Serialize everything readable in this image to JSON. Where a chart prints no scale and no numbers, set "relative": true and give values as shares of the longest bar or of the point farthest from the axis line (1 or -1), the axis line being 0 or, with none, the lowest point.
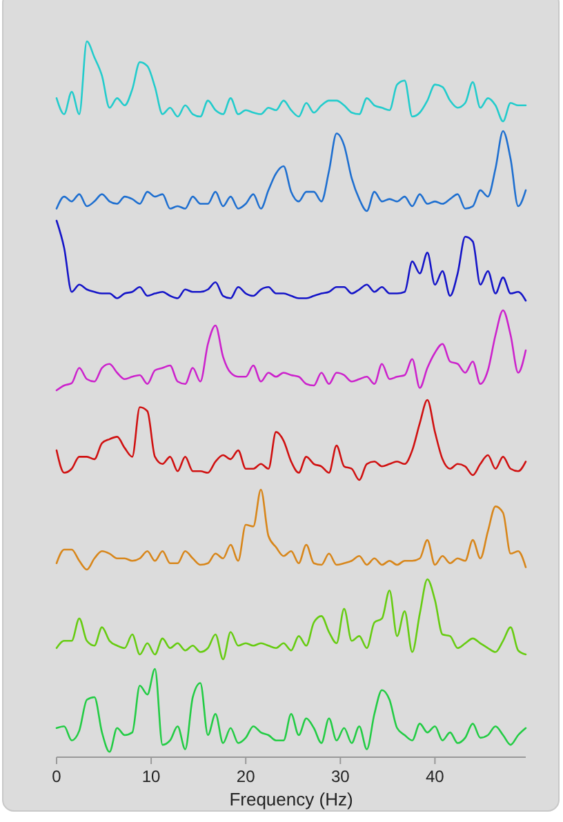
{
  "chart_data": [
    {
      "type": "line",
      "relative": true,
      "tick_labels": false,
      "x": [
        0,
        0.8,
        1.6,
        2.4,
        3.2,
        4,
        4.8,
        5.6,
        6.4,
        7.2,
        8,
        8.8,
        9.6,
        10.4,
        11.2,
        12,
        12.8,
        13.6,
        14.4,
        15.2,
        16,
        16.8,
        17.6,
        18.4,
        19.2,
        20,
        20.8,
        21.6,
        22.4,
        23.2,
        24,
        24.8,
        25.6,
        26.4,
        27.2,
        28,
        28.8,
        29.6,
        30.4,
        31.2,
        32,
        32.8,
        33.6,
        34.4,
        35.2,
        36,
        36.8,
        37.6,
        38.4,
        39.2,
        40,
        40.8,
        41.6,
        42.4,
        43.2,
        44,
        44.8,
        45.6,
        46.4,
        47.2,
        48,
        48.8,
        49.6
      ],
      "series": [
        {
          "color": "#22cccc",
          "values": [
            0.29,
            0.09,
            0.37,
            0.09,
            1,
            0.8,
            0.57,
            0.17,
            0.29,
            0.2,
            0.4,
            0.74,
            0.69,
            0.43,
            0.09,
            0.17,
            0.06,
            0.2,
            0.09,
            0.06,
            0.26,
            0.14,
            0.09,
            0.29,
            0.09,
            0.14,
            0.11,
            0.09,
            0.17,
            0.14,
            0.26,
            0.14,
            0.06,
            0.23,
            0.11,
            0.2,
            0.26,
            0.26,
            0.2,
            0.11,
            0.09,
            0.29,
            0.2,
            0.17,
            0.14,
            0.46,
            0.51,
            0.06,
            0.11,
            0.26,
            0.46,
            0.43,
            0.26,
            0.17,
            0.23,
            0.49,
            0.17,
            0.29,
            0.2,
            0,
            0.23,
            0.2,
            0.2
          ]
        }
      ]
    },
    {
      "type": "line",
      "relative": true,
      "tick_labels": false,
      "x": [
        0,
        0.8,
        1.6,
        2.4,
        3.2,
        4,
        4.8,
        5.6,
        6.4,
        7.2,
        8,
        8.8,
        9.6,
        10.4,
        11.2,
        12,
        12.8,
        13.6,
        14.4,
        15.2,
        16,
        16.8,
        17.6,
        18.4,
        19.2,
        20,
        20.8,
        21.6,
        22.4,
        23.2,
        24,
        24.8,
        25.6,
        26.4,
        27.2,
        28,
        28.8,
        29.6,
        30.4,
        31.2,
        32,
        32.8,
        33.6,
        34.4,
        35.2,
        36,
        36.8,
        37.6,
        38.4,
        39.2,
        40,
        40.8,
        41.6,
        42.4,
        43.2,
        44,
        44.8,
        45.6,
        46.4,
        47.2,
        48,
        48.8,
        49.6
      ],
      "series": [
        {
          "color": "#1e6fd0",
          "values": [
            0.03,
            0.18,
            0.12,
            0.21,
            0.06,
            0.12,
            0.21,
            0.12,
            0.09,
            0.18,
            0.15,
            0.09,
            0.24,
            0.18,
            0.21,
            0.03,
            0.06,
            0.03,
            0.18,
            0.09,
            0.09,
            0.24,
            0.06,
            0.18,
            0.03,
            0.09,
            0.21,
            0.03,
            0.26,
            0.47,
            0.56,
            0.24,
            0.12,
            0.24,
            0.24,
            0.12,
            0.5,
            0.97,
            0.82,
            0.41,
            0.15,
            0,
            0.24,
            0.12,
            0.15,
            0.12,
            0.18,
            0.06,
            0.21,
            0.09,
            0.12,
            0.09,
            0.15,
            0.21,
            0.03,
            0.06,
            0.26,
            0.18,
            0.53,
            1,
            0.65,
            0.06,
            0.26
          ]
        }
      ]
    },
    {
      "type": "line",
      "relative": true,
      "tick_labels": false,
      "x": [
        0,
        0.8,
        1.6,
        2.4,
        3.2,
        4,
        4.8,
        5.6,
        6.4,
        7.2,
        8,
        8.8,
        9.6,
        10.4,
        11.2,
        12,
        12.8,
        13.6,
        14.4,
        15.2,
        16,
        16.8,
        17.6,
        18.4,
        19.2,
        20,
        20.8,
        21.6,
        22.4,
        23.2,
        24,
        24.8,
        25.6,
        26.4,
        27.2,
        28,
        28.8,
        29.6,
        30.4,
        31.2,
        32,
        32.8,
        33.6,
        34.4,
        35.2,
        36,
        36.8,
        37.6,
        38.4,
        39.2,
        40,
        40.8,
        41.6,
        42.4,
        43.2,
        44,
        44.8,
        45.6,
        46.4,
        47.2,
        48,
        48.8,
        49.6
      ],
      "series": [
        {
          "color": "#1414c8",
          "values": [
            1,
            0.66,
            0.11,
            0.2,
            0.14,
            0.11,
            0.09,
            0.09,
            0.03,
            0.09,
            0.11,
            0.17,
            0.06,
            0.09,
            0.11,
            0.06,
            0.03,
            0.14,
            0.11,
            0.11,
            0.14,
            0.23,
            0.06,
            0.03,
            0.17,
            0.09,
            0.06,
            0.14,
            0.17,
            0.09,
            0.09,
            0.06,
            0.03,
            0.03,
            0.06,
            0.09,
            0.11,
            0.17,
            0.17,
            0.09,
            0.14,
            0.2,
            0.11,
            0.17,
            0.09,
            0.09,
            0.11,
            0.49,
            0.34,
            0.6,
            0.2,
            0.37,
            0.06,
            0.34,
            0.8,
            0.74,
            0.2,
            0.37,
            0.09,
            0.29,
            0.09,
            0.11,
            0
          ]
        }
      ]
    },
    {
      "type": "line",
      "relative": true,
      "tick_labels": false,
      "x": [
        0,
        0.8,
        1.6,
        2.4,
        3.2,
        4,
        4.8,
        5.6,
        6.4,
        7.2,
        8,
        8.8,
        9.6,
        10.4,
        11.2,
        12,
        12.8,
        13.6,
        14.4,
        15.2,
        16,
        16.8,
        17.6,
        18.4,
        19.2,
        20,
        20.8,
        21.6,
        22.4,
        23.2,
        24,
        24.8,
        25.6,
        26.4,
        27.2,
        28,
        28.8,
        29.6,
        30.4,
        31.2,
        32,
        32.8,
        33.6,
        34.4,
        35.2,
        36,
        36.8,
        37.6,
        38.4,
        39.2,
        40,
        40.8,
        41.6,
        42.4,
        43.2,
        44,
        44.8,
        45.6,
        46.4,
        47.2,
        48,
        48.8,
        49.6
      ],
      "series": [
        {
          "color": "#cc22cc",
          "values": [
            0,
            0.06,
            0.09,
            0.28,
            0.14,
            0.11,
            0.28,
            0.33,
            0.22,
            0.14,
            0.17,
            0.19,
            0.08,
            0.25,
            0.28,
            0.31,
            0.11,
            0.08,
            0.28,
            0.11,
            0.58,
            0.81,
            0.42,
            0.22,
            0.17,
            0.17,
            0.31,
            0.11,
            0.22,
            0.17,
            0.22,
            0.19,
            0.17,
            0.08,
            0.06,
            0.22,
            0.08,
            0.22,
            0.19,
            0.11,
            0.14,
            0.17,
            0.08,
            0.33,
            0.14,
            0.17,
            0.19,
            0.39,
            0.03,
            0.28,
            0.47,
            0.58,
            0.36,
            0.33,
            0.22,
            0.36,
            0.08,
            0.25,
            0.69,
            1,
            0.69,
            0.22,
            0.5
          ]
        }
      ]
    },
    {
      "type": "line",
      "relative": true,
      "tick_labels": false,
      "x": [
        0,
        0.8,
        1.6,
        2.4,
        3.2,
        4,
        4.8,
        5.6,
        6.4,
        7.2,
        8,
        8.8,
        9.6,
        10.4,
        11.2,
        12,
        12.8,
        13.6,
        14.4,
        15.2,
        16,
        16.8,
        17.6,
        18.4,
        19.2,
        20,
        20.8,
        21.6,
        22.4,
        23.2,
        24,
        24.8,
        25.6,
        26.4,
        27.2,
        28,
        28.8,
        29.6,
        30.4,
        31.2,
        32,
        32.8,
        33.6,
        34.4,
        35.2,
        36,
        36.8,
        37.6,
        38.4,
        39.2,
        40,
        40.8,
        41.6,
        42.4,
        43.2,
        44,
        44.8,
        45.6,
        46.4,
        47.2,
        48,
        48.8,
        49.6
      ],
      "series": [
        {
          "color": "#d01010",
          "values": [
            0.37,
            0.09,
            0.14,
            0.29,
            0.29,
            0.26,
            0.46,
            0.51,
            0.54,
            0.4,
            0.29,
            0.91,
            0.86,
            0.29,
            0.2,
            0.29,
            0.11,
            0.29,
            0.11,
            0.11,
            0.09,
            0.23,
            0.31,
            0.26,
            0.37,
            0.14,
            0.14,
            0.2,
            0.14,
            0.6,
            0.49,
            0.23,
            0.09,
            0.29,
            0.2,
            0.17,
            0.09,
            0.43,
            0.17,
            0.14,
            0,
            0.2,
            0.23,
            0.17,
            0.2,
            0.23,
            0.2,
            0.37,
            0.71,
            1,
            0.6,
            0.26,
            0.14,
            0.2,
            0.17,
            0.06,
            0.2,
            0.31,
            0.14,
            0.29,
            0.14,
            0.11,
            0.23
          ]
        }
      ]
    },
    {
      "type": "line",
      "relative": true,
      "tick_labels": false,
      "x": [
        0,
        0.8,
        1.6,
        2.4,
        3.2,
        4,
        4.8,
        5.6,
        6.4,
        7.2,
        8,
        8.8,
        9.6,
        10.4,
        11.2,
        12,
        12.8,
        13.6,
        14.4,
        15.2,
        16,
        16.8,
        17.6,
        18.4,
        19.2,
        20,
        20.8,
        21.6,
        22.4,
        23.2,
        24,
        24.8,
        25.6,
        26.4,
        27.2,
        28,
        28.8,
        29.6,
        30.4,
        31.2,
        32,
        32.8,
        33.6,
        34.4,
        35.2,
        36,
        36.8,
        37.6,
        38.4,
        39.2,
        40,
        40.8,
        41.6,
        42.4,
        43.2,
        44,
        44.8,
        45.6,
        46.4,
        47.2,
        48,
        48.8,
        49.6
      ],
      "series": [
        {
          "color": "#d8861a",
          "values": [
            0.08,
            0.25,
            0.25,
            0.11,
            0,
            0.14,
            0.23,
            0.2,
            0.14,
            0.14,
            0.11,
            0.14,
            0.23,
            0.11,
            0.23,
            0.08,
            0.08,
            0.23,
            0.14,
            0.06,
            0.08,
            0.2,
            0.14,
            0.31,
            0.11,
            0.56,
            0.54,
            1,
            0.42,
            0.28,
            0.17,
            0.23,
            0.08,
            0.31,
            0.08,
            0.06,
            0.2,
            0.06,
            0.08,
            0.11,
            0.17,
            0.06,
            0.14,
            0.06,
            0.11,
            0.06,
            0.11,
            0.11,
            0.14,
            0.37,
            0.06,
            0.17,
            0.08,
            0.14,
            0.11,
            0.37,
            0.14,
            0.48,
            0.79,
            0.71,
            0.2,
            0.23,
            0.03
          ]
        }
      ]
    },
    {
      "type": "line",
      "relative": true,
      "tick_labels": false,
      "x": [
        0,
        0.8,
        1.6,
        2.4,
        3.2,
        4,
        4.8,
        5.6,
        6.4,
        7.2,
        8,
        8.8,
        9.6,
        10.4,
        11.2,
        12,
        12.8,
        13.6,
        14.4,
        15.2,
        16,
        16.8,
        17.6,
        18.4,
        19.2,
        20,
        20.8,
        21.6,
        22.4,
        23.2,
        24,
        24.8,
        25.6,
        26.4,
        27.2,
        28,
        28.8,
        29.6,
        30.4,
        31.2,
        32,
        32.8,
        33.6,
        34.4,
        35.2,
        36,
        36.8,
        37.6,
        38.4,
        39.2,
        40,
        40.8,
        41.6,
        42.4,
        43.2,
        44,
        44.8,
        45.6,
        46.4,
        47.2,
        48,
        48.8,
        49.6
      ],
      "series": [
        {
          "color": "#66cc11",
          "values": [
            0.14,
            0.23,
            0.23,
            0.51,
            0.23,
            0.17,
            0.4,
            0.23,
            0.17,
            0.14,
            0.31,
            0.06,
            0.2,
            0.06,
            0.26,
            0.14,
            0.2,
            0.11,
            0.17,
            0.09,
            0.14,
            0.31,
            0,
            0.34,
            0.17,
            0.2,
            0.17,
            0.2,
            0.17,
            0.14,
            0.2,
            0.11,
            0.29,
            0.17,
            0.46,
            0.54,
            0.34,
            0.2,
            0.63,
            0.23,
            0.29,
            0.14,
            0.46,
            0.51,
            0.86,
            0.29,
            0.6,
            0.09,
            0.57,
            1,
            0.74,
            0.31,
            0.29,
            0.14,
            0.2,
            0.26,
            0.2,
            0.14,
            0.09,
            0.23,
            0.4,
            0.11,
            0.06
          ]
        }
      ]
    },
    {
      "type": "line",
      "relative": true,
      "tick_labels": "x",
      "xlabel": "Frequency (Hz)",
      "xlim": [
        0,
        49.6
      ],
      "xticks": [
        0,
        10,
        20,
        30,
        40
      ],
      "x": [
        0,
        0.8,
        1.6,
        2.4,
        3.2,
        4,
        4.8,
        5.6,
        6.4,
        7.2,
        8,
        8.8,
        9.6,
        10.4,
        11.2,
        12,
        12.8,
        13.6,
        14.4,
        15.2,
        16,
        16.8,
        17.6,
        18.4,
        19.2,
        20,
        20.8,
        21.6,
        22.4,
        23.2,
        24,
        24.8,
        25.6,
        26.4,
        27.2,
        28,
        28.8,
        29.6,
        30.4,
        31.2,
        32,
        32.8,
        33.6,
        34.4,
        35.2,
        36,
        36.8,
        37.6,
        38.4,
        39.2,
        40,
        40.8,
        41.6,
        42.4,
        43.2,
        44,
        44.8,
        45.6,
        46.4,
        47.2,
        48,
        48.8,
        49.6
      ],
      "series": [
        {
          "color": "#22cc44",
          "values": [
            0.33,
            0.35,
            0.19,
            0.3,
            0.65,
            0.68,
            0.28,
            0.06,
            0.33,
            0.25,
            0.28,
            0.81,
            0.71,
            1,
            0.14,
            0.19,
            0.35,
            0.09,
            0.68,
            0.84,
            0.25,
            0.49,
            0.16,
            0.33,
            0.16,
            0.22,
            0.35,
            0.28,
            0.25,
            0.19,
            0.19,
            0.49,
            0.25,
            0.44,
            0.33,
            0.16,
            0.44,
            0.19,
            0.33,
            0.16,
            0.35,
            0.09,
            0.49,
            0.76,
            0.65,
            0.33,
            0.25,
            0.19,
            0.38,
            0.28,
            0.35,
            0.19,
            0.28,
            0.16,
            0.22,
            0.38,
            0.22,
            0.25,
            0.35,
            0.25,
            0.14,
            0.25,
            0.33
          ]
        }
      ]
    }
  ]
}
